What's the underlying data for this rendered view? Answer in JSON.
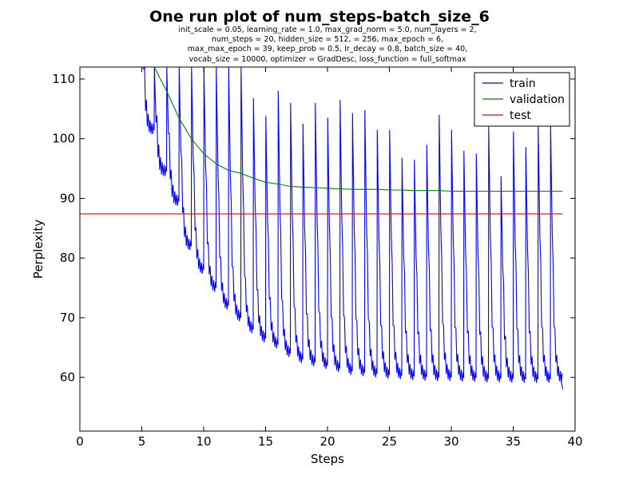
{
  "chart_data": {
    "type": "line",
    "title": "One run plot of num_steps-batch_size_6",
    "subtitle_lines": [
      "init_scale = 0.05, learning_rate = 1.0, max_grad_norm = 5.0, num_layers = 2,",
      "num_steps = 20, hidden_size = 512,   = 256, max_epoch = 6,",
      "max_max_epoch = 39, keep_prob = 0.5, lr_decay = 0.8, batch_size = 40,",
      "vocab_size = 10000, optimizer = GradDesc, loss_function = full_softmax"
    ],
    "xlabel": "Steps",
    "ylabel": "Perplexity",
    "xlim": [
      0,
      40
    ],
    "ylim": [
      51,
      112
    ],
    "xticks": [
      0,
      5,
      10,
      15,
      20,
      25,
      30,
      35,
      40
    ],
    "yticks": [
      60,
      70,
      80,
      90,
      100,
      110
    ],
    "grid": false,
    "legend_position": "top-right",
    "series": [
      {
        "name": "train",
        "color": "#0000ff",
        "epochs": [
          {
            "start": 5,
            "peak": 112,
            "end": 101.5
          },
          {
            "start": 6,
            "peak": 112,
            "end": 94.5
          },
          {
            "start": 7,
            "peak": 112,
            "end": 89.5
          },
          {
            "start": 8,
            "peak": 112,
            "end": 82.0
          },
          {
            "start": 9,
            "peak": 112,
            "end": 78.0
          },
          {
            "start": 10,
            "peak": 112,
            "end": 75.0
          },
          {
            "start": 11,
            "peak": 112,
            "end": 72.0
          },
          {
            "start": 12,
            "peak": 112,
            "end": 70.0
          },
          {
            "start": 13,
            "peak": 112,
            "end": 68.0
          },
          {
            "start": 14,
            "peak": 106.8,
            "end": 66.5
          },
          {
            "start": 15,
            "peak": 103.8,
            "end": 65.5
          },
          {
            "start": 16,
            "peak": 108.0,
            "end": 64.0
          },
          {
            "start": 17,
            "peak": 106.0,
            "end": 63.0
          },
          {
            "start": 18,
            "peak": 102.5,
            "end": 62.5
          },
          {
            "start": 19,
            "peak": 106.0,
            "end": 62.0
          },
          {
            "start": 20,
            "peak": 103.5,
            "end": 61.5
          },
          {
            "start": 21,
            "peak": 106.5,
            "end": 61.0
          },
          {
            "start": 22,
            "peak": 104.3,
            "end": 60.8
          },
          {
            "start": 23,
            "peak": 104.8,
            "end": 60.6
          },
          {
            "start": 24,
            "peak": 101.5,
            "end": 60.4
          },
          {
            "start": 25,
            "peak": 101.5,
            "end": 60.3
          },
          {
            "start": 26,
            "peak": 96.8,
            "end": 60.2
          },
          {
            "start": 27,
            "peak": 96.5,
            "end": 60.1
          },
          {
            "start": 28,
            "peak": 99.0,
            "end": 60.0
          },
          {
            "start": 29,
            "peak": 104.0,
            "end": 60.0
          },
          {
            "start": 30,
            "peak": 101.5,
            "end": 59.9
          },
          {
            "start": 31,
            "peak": 98.0,
            "end": 59.9
          },
          {
            "start": 32,
            "peak": 97.5,
            "end": 59.8
          },
          {
            "start": 33,
            "peak": 102.0,
            "end": 59.8
          },
          {
            "start": 34,
            "peak": 93.7,
            "end": 59.8
          },
          {
            "start": 35,
            "peak": 101.2,
            "end": 59.7
          },
          {
            "start": 36,
            "peak": 98.6,
            "end": 59.7
          },
          {
            "start": 37,
            "peak": 102.5,
            "end": 59.7
          },
          {
            "start": 38,
            "peak": 102.5,
            "end": 59.7
          }
        ],
        "final": {
          "x": 39,
          "y": 58.0
        }
      },
      {
        "name": "validation",
        "color": "#008000",
        "x": [
          6,
          7,
          8,
          9,
          10,
          11,
          12,
          13,
          14,
          15,
          16,
          17,
          18,
          19,
          20,
          21,
          22,
          23,
          24,
          25,
          26,
          27,
          28,
          29,
          30,
          31,
          32,
          33,
          34,
          35,
          36,
          37,
          38,
          39
        ],
        "y": [
          112.0,
          108.0,
          103.5,
          100.0,
          97.5,
          95.8,
          94.7,
          94.2,
          93.4,
          92.7,
          92.4,
          92.0,
          91.9,
          91.8,
          91.7,
          91.6,
          91.5,
          91.5,
          91.5,
          91.4,
          91.4,
          91.3,
          91.3,
          91.3,
          91.2,
          91.2,
          91.2,
          91.2,
          91.2,
          91.2,
          91.2,
          91.2,
          91.2,
          91.2
        ]
      },
      {
        "name": "test",
        "color": "#ff0000",
        "x": [
          0,
          39
        ],
        "y": [
          87.4,
          87.4
        ]
      }
    ]
  }
}
